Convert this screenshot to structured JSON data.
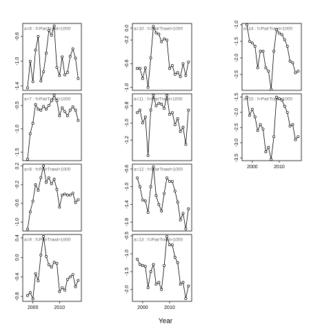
{
  "xlabel": "Year",
  "chart_data": [
    {
      "type": "line",
      "title": "a=6 : f=PairTrawl>1000",
      "x": [
        1998,
        1999,
        2000,
        2001,
        2002,
        2003,
        2004,
        2005,
        2006,
        2007,
        2008,
        2009,
        2010,
        2011,
        2012,
        2013,
        2014,
        2015,
        2016,
        2017
      ],
      "values": [
        -1.43,
        -1.0,
        -1.33,
        -0.82,
        -0.6,
        -1.32,
        -1.17,
        -0.87,
        -0.5,
        -0.58,
        -0.43,
        -1.1,
        -1.23,
        -0.93,
        -1.22,
        -1.18,
        -0.92,
        -0.8,
        -0.95,
        -1.28
      ],
      "color": "#000000",
      "xlim": [
        1996.2,
        2018.2
      ],
      "ylim": [
        -1.47,
        -0.39
      ],
      "yticks": [
        -0.6,
        {
          "value": -1,
          "label": "-1.0"
        },
        -1.4
      ]
    },
    {
      "type": "line",
      "title": "a=7 : f=PairTrawl>1000",
      "x": [
        1998,
        1999,
        2000,
        2001,
        2002,
        2003,
        2004,
        2005,
        2006,
        2007,
        2008,
        2009,
        2010,
        2011,
        2012,
        2013,
        2014,
        2015,
        2016,
        2017
      ],
      "values": [
        -1.65,
        -1.1,
        -0.88,
        -0.48,
        -0.58,
        -0.6,
        -0.52,
        -0.58,
        -0.5,
        -0.4,
        -0.28,
        -0.4,
        -0.72,
        -0.55,
        -0.63,
        -0.72,
        -0.6,
        -0.53,
        -0.6,
        -0.82
      ],
      "color": "#000000",
      "xlim": [
        1996.2,
        2018.2
      ],
      "ylim": [
        -1.68,
        -0.25
      ],
      "yticks": [
        -0.5,
        {
          "value": -1,
          "label": "-1.0"
        },
        -1.5
      ]
    },
    {
      "type": "line",
      "title": "a=8 : f=PairTrawl>1000",
      "x": [
        1998,
        1999,
        2000,
        2001,
        2002,
        2003,
        2004,
        2005,
        2006,
        2007,
        2008,
        2009,
        2010,
        2011,
        2012,
        2013,
        2014,
        2015,
        2016,
        2017
      ],
      "values": [
        -1.15,
        -0.78,
        -0.55,
        -0.2,
        -0.32,
        -0.05,
        0.2,
        -0.15,
        -0.05,
        -0.18,
        -0.08,
        -0.3,
        -0.68,
        -0.42,
        -0.4,
        -0.42,
        -0.42,
        -0.38,
        -0.58,
        -0.52
      ],
      "color": "#000000",
      "xlim": [
        1996.2,
        2018.2
      ],
      "ylim": [
        -1.19,
        0.24
      ],
      "yticks": [
        0.2,
        -0.2,
        -0.6,
        {
          "value": -1,
          "label": "-1.0"
        }
      ]
    },
    {
      "type": "line",
      "title": "a=9 : f=PairTrawl>1000",
      "x": [
        1998,
        1999,
        2000,
        2001,
        2002,
        2003,
        2004,
        2005,
        2006,
        2007,
        2008,
        2009,
        2010,
        2011,
        2012,
        2013,
        2014,
        2015,
        2016,
        2017
      ],
      "values": [
        -0.78,
        -0.72,
        -0.85,
        -0.33,
        -0.48,
        0.05,
        0.43,
        0.02,
        -0.15,
        -0.2,
        -0.1,
        -0.12,
        -0.7,
        -0.62,
        -0.67,
        -0.45,
        -0.4,
        -0.35,
        -0.6,
        -0.47
      ],
      "color": "#000000",
      "xlim": [
        1996.2,
        2018.2
      ],
      "ylim": [
        -0.9,
        0.47
      ],
      "yticks": [
        0.4,
        {
          "value": 0,
          "label": "0.0"
        },
        -0.4,
        -0.8
      ],
      "xticks": [
        2000,
        2010
      ]
    },
    {
      "type": "line",
      "title": "a=10 : f=PairTrawl>1000",
      "x": [
        1998,
        1999,
        2000,
        2001,
        2002,
        2003,
        2004,
        2005,
        2006,
        2007,
        2008,
        2009,
        2010,
        2011,
        2012,
        2013,
        2014,
        2015,
        2016,
        2017
      ],
      "values": [
        -0.68,
        -0.68,
        -0.85,
        -0.67,
        -1.0,
        -0.5,
        0.03,
        -0.08,
        -0.1,
        -0.23,
        -0.18,
        -0.2,
        -0.68,
        -0.63,
        -0.78,
        -0.75,
        -0.82,
        -0.6,
        -0.8,
        -0.57
      ],
      "color": "#000000",
      "xlim": [
        1996.2,
        2018.2
      ],
      "ylim": [
        -1.05,
        0.08
      ],
      "yticks": [
        {
          "value": 0,
          "label": "0.0"
        },
        -0.2,
        -0.6,
        {
          "value": -1,
          "label": "-1.0"
        }
      ]
    },
    {
      "type": "line",
      "title": "a=11 : f=PairTrawl>1000",
      "x": [
        1998,
        1999,
        2000,
        2001,
        2002,
        2003,
        2004,
        2005,
        2006,
        2007,
        2008,
        2009,
        2010,
        2011,
        2012,
        2013,
        2014,
        2015,
        2016,
        2017
      ],
      "values": [
        -0.88,
        -0.85,
        -1.0,
        -0.93,
        -1.38,
        -0.85,
        -0.68,
        -0.8,
        -0.77,
        -0.78,
        -0.83,
        -0.68,
        -0.9,
        -0.88,
        -1.02,
        -0.95,
        -1.1,
        -1.05,
        -1.25,
        -0.85
      ],
      "color": "#000000",
      "xlim": [
        1996.2,
        2018.2
      ],
      "ylim": [
        -1.44,
        -0.66
      ],
      "yticks": [
        -0.8,
        {
          "value": -1,
          "label": "-1.0"
        },
        -1.2
      ]
    },
    {
      "type": "line",
      "title": "a=12 : f=PairTrawl>1000",
      "x": [
        1998,
        1999,
        2000,
        2001,
        2002,
        2003,
        2004,
        2005,
        2006,
        2007,
        2008,
        2009,
        2010,
        2011,
        2012,
        2013,
        2014,
        2015,
        2016,
        2017
      ],
      "values": [
        -0.8,
        -1.0,
        -1.3,
        -1.32,
        -1.58,
        -1.0,
        -0.55,
        -1.2,
        -1.4,
        -1.55,
        -1.15,
        -0.8,
        -0.88,
        -0.88,
        -1.1,
        -1.35,
        -1.75,
        -1.6,
        -1.95,
        -1.5
      ],
      "color": "#000000",
      "xlim": [
        1996.2,
        2018.2
      ],
      "ylim": [
        -2.0,
        -0.49
      ],
      "yticks": [
        -0.6,
        {
          "value": -1,
          "label": "-1.0"
        },
        -1.4,
        -1.8
      ]
    },
    {
      "type": "line",
      "title": "a=13 : f=PairTrawl>1000",
      "x": [
        1998,
        1999,
        2000,
        2001,
        2002,
        2003,
        2004,
        2005,
        2006,
        2007,
        2008,
        2009,
        2010,
        2011,
        2012,
        2013,
        2014,
        2015,
        2016,
        2017
      ],
      "values": [
        -1.15,
        -1.3,
        -1.33,
        -1.35,
        -1.95,
        -1.5,
        -1.3,
        -1.85,
        -1.8,
        -2.0,
        -1.33,
        -0.52,
        -0.75,
        -0.75,
        -1.1,
        -1.25,
        -1.85,
        -1.8,
        -2.25,
        -1.9
      ],
      "color": "#000000",
      "xlim": [
        1996.2,
        2018.2
      ],
      "ylim": [
        -2.33,
        -0.46
      ],
      "yticks": [
        -0.5,
        {
          "value": -1,
          "label": "-1.0"
        },
        -1.5,
        {
          "value": -2,
          "label": "-2.0"
        }
      ],
      "xticks": [
        2000,
        2010
      ]
    },
    {
      "type": "line",
      "title": "a=14 : f=PairTrawl>1000",
      "x": [
        1998,
        1999,
        2000,
        2001,
        2002,
        2003,
        2004,
        2005,
        2006,
        2007,
        2008,
        2009,
        2010,
        2011,
        2012,
        2013,
        2014,
        2015,
        2016,
        2017
      ],
      "values": [
        -1.0,
        -1.5,
        -1.55,
        -1.65,
        -2.3,
        -1.8,
        -1.8,
        -2.3,
        -2.4,
        -2.95,
        -1.8,
        -1.15,
        -1.25,
        -1.3,
        -1.45,
        -1.65,
        -2.1,
        -2.15,
        -2.45,
        -2.4
      ],
      "color": "#000000",
      "xlim": [
        1996.2,
        2018.2
      ],
      "ylim": [
        -2.98,
        -0.96
      ],
      "yticks": [
        {
          "value": -1,
          "label": "-1.0"
        },
        -1.5,
        {
          "value": -2,
          "label": "-2.0"
        },
        -2.5
      ]
    },
    {
      "type": "line",
      "title": "a=15 : f=PairTrawl>1000",
      "x": [
        1998,
        1999,
        2000,
        2001,
        2002,
        2003,
        2004,
        2005,
        2006,
        2007,
        2008,
        2009,
        2010,
        2011,
        2012,
        2013,
        2014,
        2015,
        2016,
        2017
      ],
      "values": [
        -1.5,
        -2.1,
        -1.9,
        -2.15,
        -2.6,
        -2.4,
        -2.55,
        -3.3,
        -3.15,
        -3.55,
        -2.8,
        -1.5,
        -1.55,
        -1.6,
        -1.8,
        -2.0,
        -2.45,
        -2.4,
        -2.9,
        -2.8
      ],
      "color": "#000000",
      "xlim": [
        1996.2,
        2018.2
      ],
      "ylim": [
        -3.59,
        -1.39
      ],
      "yticks": [
        -1.5,
        {
          "value": -2,
          "label": "-2.0"
        },
        -2.5,
        {
          "value": -3,
          "label": "-3.0"
        },
        -3.5
      ],
      "xticks": [
        2000,
        2010
      ]
    }
  ]
}
